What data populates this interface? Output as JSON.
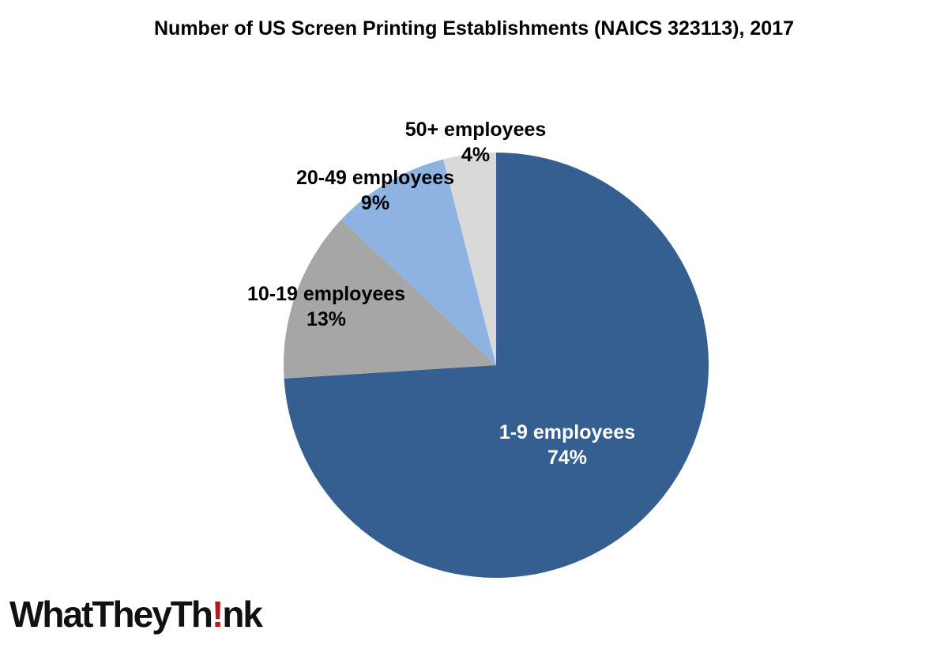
{
  "chart_data": {
    "type": "pie",
    "title": "Number of US Screen Printing Establishments (NAICS 323113), 2017",
    "start_angle_deg": 0,
    "direction": "clockwise",
    "slices": [
      {
        "label": "1-9 employees",
        "value": 74,
        "pct_label": "74%",
        "color": "#365f91",
        "text_color": "#ffffff"
      },
      {
        "label": "10-19 employees",
        "value": 13,
        "pct_label": "13%",
        "color": "#a6a6a6",
        "text_color": "#000000"
      },
      {
        "label": "20-49 employees",
        "value": 9,
        "pct_label": "9%",
        "color": "#8db3e2",
        "text_color": "#000000"
      },
      {
        "label": "50+ employees",
        "value": 4,
        "pct_label": "4%",
        "color": "#d9d9d9",
        "text_color": "#000000"
      }
    ]
  },
  "branding": {
    "logo_prefix": "WhatTheyTh",
    "logo_bang": "!",
    "logo_suffix": "nk",
    "bang_color": "#c0151b"
  }
}
